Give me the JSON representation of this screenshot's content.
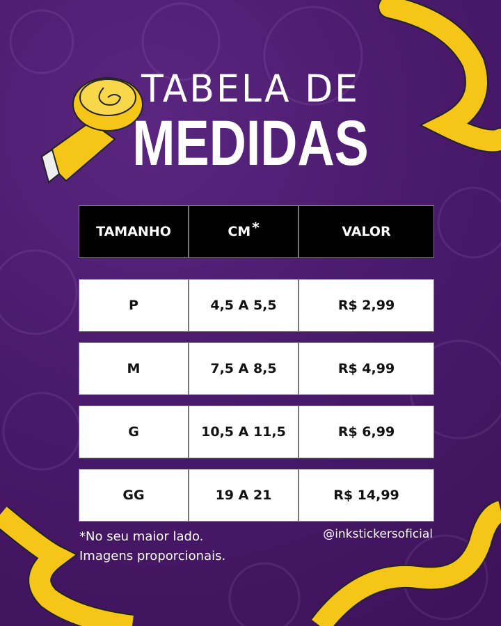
{
  "title": {
    "line1": "TABELA DE",
    "line2": "MEDIDAS"
  },
  "table": {
    "headers": [
      "TAMANHO",
      "CM",
      "VALOR"
    ],
    "header_asterisk": "*",
    "rows": [
      [
        "P",
        "4,5 A 5,5",
        "R$ 2,99"
      ],
      [
        "M",
        "7,5 A 8,5",
        "R$ 4,99"
      ],
      [
        "G",
        "10,5 A 11,5",
        "R$ 6,99"
      ],
      [
        "GG",
        "19 A 21",
        "R$ 14,99"
      ]
    ]
  },
  "footnote": {
    "line1": "*No seu maior lado.",
    "line2": "Imagens proporcionais."
  },
  "handle": "@inkstickersoficial",
  "colors": {
    "background": "#4a1a6c",
    "tape": "#f5c518",
    "header": "#000000",
    "cell": "#ffffff"
  }
}
